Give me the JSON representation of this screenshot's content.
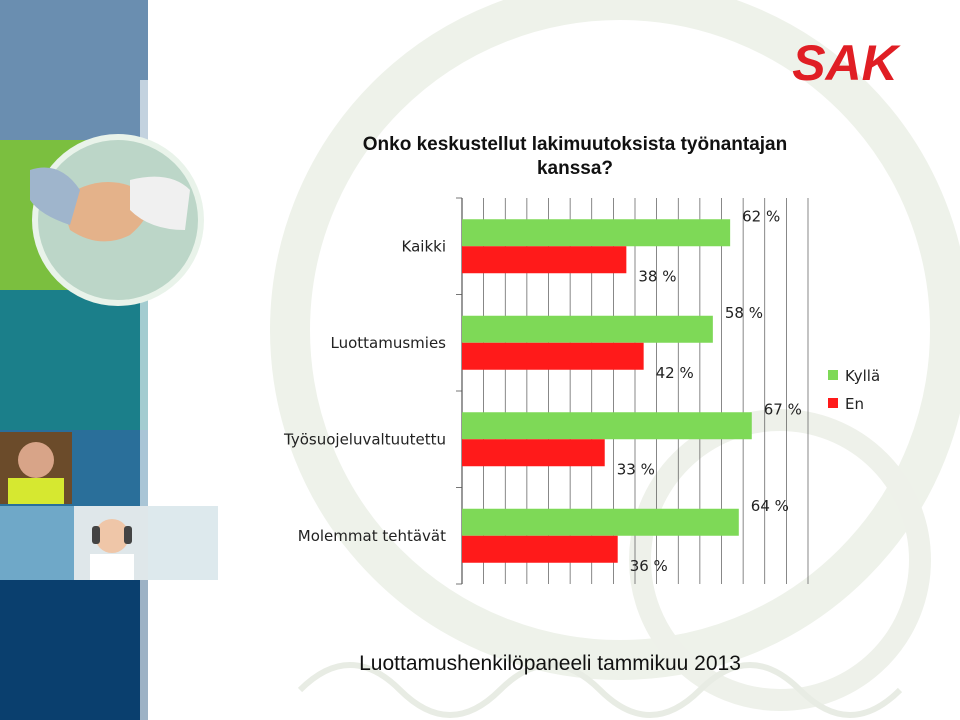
{
  "branding": {
    "logo_text": "SAK",
    "logo_color": "#e01e24"
  },
  "colors": {
    "kylla": "#7ed957",
    "en": "#ff1a1a",
    "sidebar_dark": "#0b5a8a",
    "sidebar_green": "#7bbf3f"
  },
  "footer": {
    "text": "Luottamushenkilöpaneeli tammikuu 2013"
  },
  "chart_data": {
    "type": "bar",
    "orientation": "horizontal",
    "title": "Onko keskustellut lakimuutoksista työnantajan kanssa?",
    "categories": [
      "Kaikki",
      "Luottamusmies",
      "Työsuojeluvaltuutettu",
      "Molemmat tehtävät"
    ],
    "series": [
      {
        "name": "Kyllä",
        "color": "#7ed957",
        "values": [
          62,
          58,
          67,
          64
        ]
      },
      {
        "name": "En",
        "color": "#ff1a1a",
        "values": [
          38,
          42,
          33,
          36
        ]
      }
    ],
    "value_labels": {
      "Kyllä": [
        "62 %",
        "58 %",
        "67 %",
        "64 %"
      ],
      "En": [
        "38 %",
        "42 %",
        "33 %",
        "36 %"
      ]
    },
    "xlim": [
      0,
      80
    ],
    "grid": true,
    "legend": "right"
  }
}
